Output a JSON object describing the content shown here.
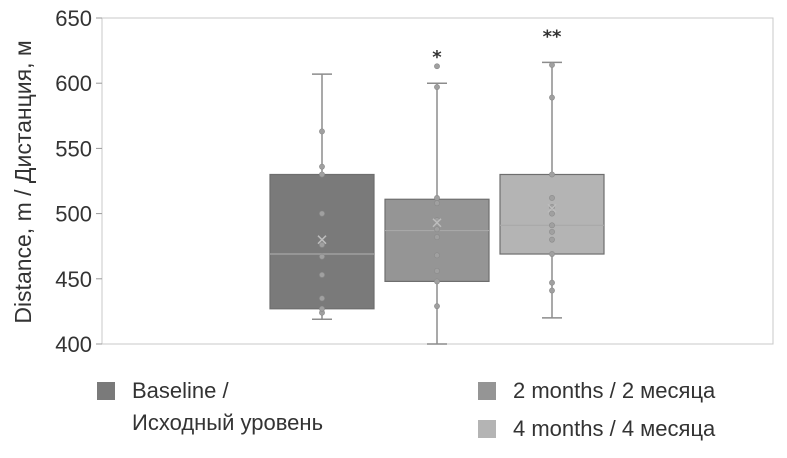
{
  "chart_data": {
    "type": "box",
    "ylabel": "Distance, m / Дистанция, м",
    "ylim": [
      400,
      650
    ],
    "yticks": [
      400,
      450,
      500,
      550,
      600,
      650
    ],
    "grid": false,
    "legend_position": "bottom",
    "series": [
      {
        "name": "Baseline / Исходный уровень",
        "name_lines": [
          "Baseline /",
          "Исходный уровень"
        ],
        "color": "#7a7a7a",
        "q1": 427,
        "median": 469,
        "q3": 530,
        "mean": 480,
        "whisker_low": 419,
        "whisker_high": 607,
        "points": [
          424,
          427,
          435,
          453,
          467,
          476,
          500,
          530,
          536,
          563
        ],
        "significance": ""
      },
      {
        "name": "2 months / 2 месяца",
        "name_lines": [
          "2 months / 2 месяца"
        ],
        "color": "#959595",
        "q1": 448,
        "median": 487,
        "q3": 511,
        "mean": 493,
        "whisker_low": 400,
        "whisker_high": 600,
        "points": [
          429,
          448,
          456,
          468,
          482,
          488,
          495,
          508,
          512,
          597,
          613
        ],
        "significance": "*"
      },
      {
        "name": "4 months / 4 месяца",
        "name_lines": [
          "4 months / 4 месяца"
        ],
        "color": "#b4b4b4",
        "q1": 469,
        "median": 491,
        "q3": 530,
        "mean": 504,
        "whisker_low": 420,
        "whisker_high": 616,
        "points": [
          441,
          447,
          469,
          480,
          486,
          491,
          500,
          505,
          512,
          530,
          589,
          614
        ],
        "significance": "**"
      }
    ]
  }
}
